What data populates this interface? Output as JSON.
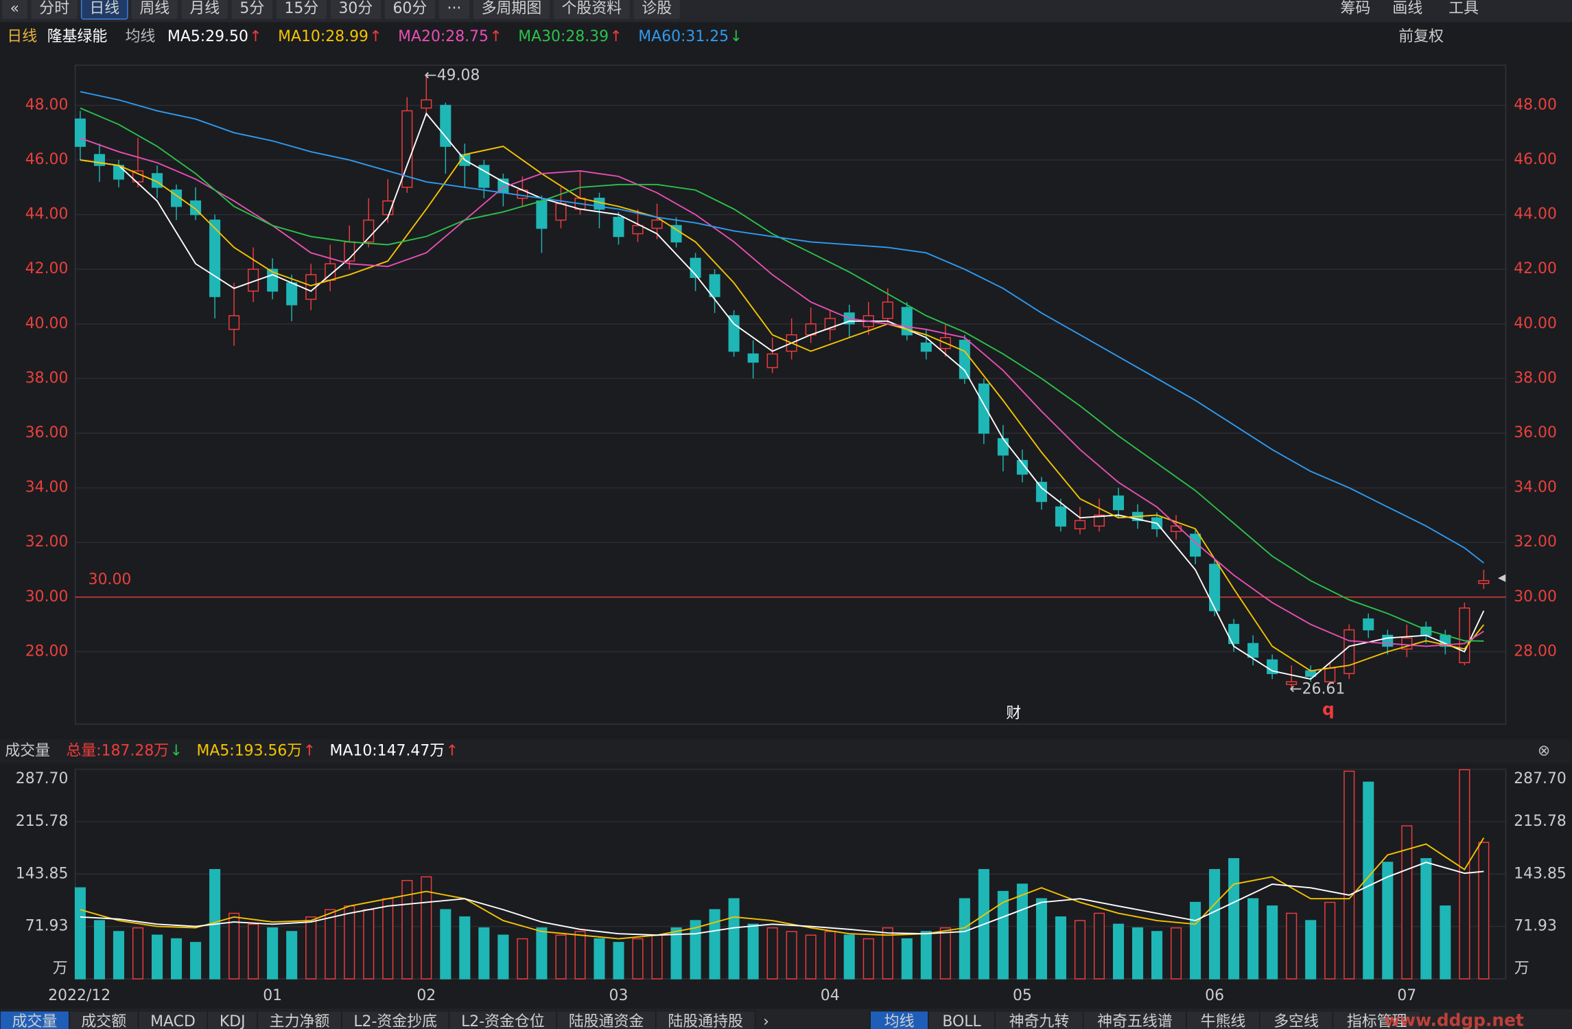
{
  "toolbar": {
    "left": [
      "«",
      "分时",
      "日线",
      "周线",
      "月线",
      "5分",
      "15分",
      "30分",
      "60分",
      "···",
      "多周期图",
      "个股资料",
      "诊股"
    ],
    "selected_index": 2,
    "right": [
      "筹码",
      "画线",
      "工具"
    ]
  },
  "chart_data": [
    {
      "type": "candlestick",
      "period": "日线",
      "name": "隆基绿能",
      "legend_title": "均线",
      "categories": [
        "2022/12",
        null,
        null,
        null,
        null,
        null,
        null,
        null,
        null,
        null,
        "01",
        null,
        null,
        null,
        null,
        null,
        null,
        null,
        "02",
        null,
        null,
        null,
        null,
        null,
        null,
        null,
        null,
        null,
        "03",
        null,
        null,
        null,
        null,
        null,
        null,
        null,
        null,
        null,
        null,
        "04",
        null,
        null,
        null,
        null,
        null,
        null,
        null,
        null,
        null,
        "05",
        null,
        null,
        null,
        null,
        null,
        null,
        null,
        null,
        null,
        "06",
        null,
        null,
        null,
        null,
        null,
        null,
        null,
        null,
        null,
        "07",
        null,
        null,
        null,
        null
      ],
      "open": [
        47.5,
        46.2,
        45.8,
        45.2,
        45.5,
        44.9,
        44.5,
        43.8,
        39.8,
        41.2,
        42.0,
        41.5,
        40.9,
        41.6,
        42.3,
        43.0,
        44.0,
        45.0,
        47.9,
        48.0,
        46.2,
        45.8,
        45.3,
        44.6,
        44.5,
        43.8,
        44.2,
        44.6,
        43.9,
        43.3,
        43.5,
        43.6,
        42.4,
        41.8,
        40.3,
        38.9,
        38.4,
        39.0,
        39.6,
        39.8,
        40.4,
        39.9,
        40.2,
        40.6,
        39.3,
        39.1,
        39.4,
        37.8,
        35.8,
        35.0,
        34.2,
        33.3,
        32.5,
        32.6,
        33.7,
        33.1,
        32.9,
        32.4,
        32.3,
        31.2,
        29.0,
        28.3,
        27.7,
        26.8,
        27.3,
        26.9,
        27.2,
        29.2,
        28.6,
        28.1,
        28.9,
        28.6,
        27.6,
        30.5
      ],
      "high": [
        47.8,
        46.6,
        46.0,
        46.8,
        45.8,
        45.1,
        45.0,
        44.0,
        41.5,
        42.8,
        42.4,
        41.8,
        42.2,
        42.9,
        43.6,
        44.6,
        45.3,
        48.3,
        49.08,
        48.1,
        46.6,
        46.0,
        45.5,
        45.4,
        44.7,
        45.0,
        45.6,
        44.8,
        44.1,
        44.2,
        44.4,
        43.9,
        42.6,
        42.0,
        40.5,
        39.4,
        39.5,
        40.2,
        40.6,
        40.5,
        40.7,
        40.8,
        41.3,
        40.8,
        39.8,
        40.0,
        39.6,
        38.0,
        36.3,
        35.4,
        34.4,
        33.6,
        33.3,
        33.6,
        34.0,
        33.4,
        33.1,
        33.0,
        32.5,
        31.4,
        29.2,
        28.6,
        27.9,
        27.5,
        27.5,
        27.6,
        29.0,
        29.4,
        28.8,
        29.0,
        29.1,
        28.8,
        29.8,
        31.0
      ],
      "low": [
        46.0,
        45.2,
        45.0,
        45.0,
        44.6,
        43.8,
        43.8,
        40.2,
        39.2,
        40.8,
        40.9,
        40.1,
        40.5,
        41.2,
        42.0,
        42.8,
        43.7,
        44.8,
        47.6,
        45.5,
        45.0,
        44.6,
        44.3,
        44.3,
        42.6,
        43.5,
        44.0,
        43.5,
        42.9,
        43.0,
        43.1,
        42.8,
        41.2,
        40.4,
        38.8,
        38.0,
        38.2,
        38.7,
        39.3,
        39.4,
        39.5,
        39.6,
        40.0,
        39.4,
        38.7,
        38.8,
        37.8,
        35.6,
        34.6,
        34.2,
        33.2,
        32.4,
        32.3,
        32.4,
        32.9,
        32.5,
        32.2,
        32.1,
        31.2,
        29.3,
        28.0,
        27.5,
        27.0,
        26.61,
        26.9,
        26.8,
        27.0,
        28.5,
        27.9,
        27.8,
        28.3,
        27.9,
        27.5,
        30.3
      ],
      "close": [
        46.5,
        45.8,
        45.3,
        45.6,
        45.0,
        44.3,
        44.0,
        41.0,
        40.3,
        42.0,
        41.2,
        40.7,
        41.8,
        42.2,
        43.0,
        43.8,
        44.5,
        47.8,
        48.2,
        46.5,
        45.8,
        45.0,
        44.8,
        44.9,
        43.5,
        44.4,
        44.6,
        44.2,
        43.2,
        43.6,
        43.8,
        43.0,
        41.7,
        41.0,
        39.0,
        38.6,
        38.9,
        39.6,
        40.0,
        40.2,
        40.0,
        40.3,
        40.8,
        39.6,
        39.0,
        39.5,
        38.0,
        36.0,
        35.2,
        34.5,
        33.5,
        32.6,
        32.8,
        33.0,
        33.2,
        32.8,
        32.5,
        32.6,
        31.5,
        29.5,
        28.3,
        27.8,
        27.2,
        26.9,
        27.1,
        27.4,
        28.8,
        28.8,
        28.2,
        28.5,
        28.6,
        28.2,
        29.6,
        30.6
      ],
      "up_color": "#f03c3c",
      "down_color": "#1fb6b6",
      "ylim": [
        25.35,
        49.47
      ],
      "yticks": [
        {
          "value": 28,
          "label": "28.00"
        },
        {
          "value": 30,
          "label": "30.00"
        },
        {
          "value": 32,
          "label": "32.00"
        },
        {
          "value": 34,
          "label": "34.00"
        },
        {
          "value": 36,
          "label": "36.00"
        },
        {
          "value": 38,
          "label": "38.00"
        },
        {
          "value": 40,
          "label": "40.00"
        },
        {
          "value": 42,
          "label": "42.00"
        },
        {
          "value": 44,
          "label": "44.00"
        },
        {
          "value": 46,
          "label": "46.00"
        },
        {
          "value": 48,
          "label": "48.00"
        }
      ],
      "grid": true,
      "lines": [
        {
          "name": "MA5",
          "label": "MA5:29.50",
          "trend": "↑",
          "color": "#ffffff",
          "x": [
            0,
            2,
            4,
            6,
            8,
            10,
            12,
            14,
            16,
            18,
            20,
            22,
            24,
            26,
            28,
            30,
            32,
            34,
            36,
            38,
            40,
            42,
            44,
            46,
            48,
            50,
            52,
            54,
            56,
            58,
            60,
            62,
            64,
            66,
            68,
            70,
            72,
            73
          ],
          "values": [
            46.0,
            45.8,
            44.5,
            42.2,
            41.3,
            41.8,
            41.2,
            42.4,
            43.9,
            47.7,
            46.0,
            45.2,
            44.6,
            44.2,
            44.0,
            43.3,
            41.8,
            40.0,
            39.0,
            39.6,
            40.1,
            40.1,
            39.5,
            38.3,
            35.8,
            34.0,
            32.9,
            33.0,
            32.7,
            31.0,
            28.2,
            27.3,
            27.0,
            28.2,
            28.5,
            28.6,
            28.0,
            29.5
          ]
        },
        {
          "name": "MA10",
          "label": "MA10:28.99",
          "trend": "↑",
          "color": "#f5c400",
          "x": [
            0,
            2,
            4,
            6,
            8,
            10,
            12,
            14,
            16,
            18,
            20,
            22,
            24,
            26,
            28,
            30,
            32,
            34,
            36,
            38,
            40,
            42,
            44,
            46,
            48,
            50,
            52,
            54,
            56,
            58,
            60,
            62,
            64,
            66,
            68,
            70,
            72,
            73
          ],
          "values": [
            46.0,
            45.8,
            45.2,
            44.2,
            42.8,
            41.9,
            41.4,
            41.8,
            42.3,
            44.2,
            46.2,
            46.5,
            45.5,
            44.6,
            44.3,
            43.9,
            43.0,
            41.5,
            39.6,
            39.0,
            39.5,
            40.0,
            39.6,
            39.0,
            37.2,
            35.3,
            33.6,
            32.9,
            33.0,
            32.5,
            30.3,
            28.2,
            27.3,
            27.5,
            28.0,
            28.4,
            28.1,
            28.99
          ]
        },
        {
          "name": "MA20",
          "label": "MA20:28.75",
          "trend": "↑",
          "color": "#e84fb4",
          "x": [
            0,
            2,
            4,
            6,
            8,
            10,
            12,
            14,
            16,
            18,
            20,
            22,
            24,
            26,
            28,
            30,
            32,
            34,
            36,
            38,
            40,
            42,
            44,
            46,
            48,
            50,
            52,
            54,
            56,
            58,
            60,
            62,
            64,
            66,
            68,
            70,
            72,
            73
          ],
          "values": [
            46.8,
            46.3,
            45.9,
            45.3,
            44.5,
            43.6,
            42.6,
            42.2,
            42.1,
            42.6,
            43.8,
            45.0,
            45.5,
            45.6,
            45.4,
            44.8,
            44.0,
            43.0,
            41.8,
            40.8,
            40.2,
            40.0,
            39.8,
            39.5,
            38.3,
            36.8,
            35.4,
            34.2,
            33.3,
            32.0,
            30.8,
            29.8,
            29.0,
            28.4,
            28.3,
            28.2,
            28.3,
            28.75
          ]
        },
        {
          "name": "MA30",
          "label": "MA30:28.39",
          "trend": "↑",
          "color": "#2bc24a",
          "x": [
            0,
            2,
            4,
            6,
            8,
            10,
            12,
            14,
            16,
            18,
            20,
            22,
            24,
            26,
            28,
            30,
            32,
            34,
            36,
            38,
            40,
            42,
            44,
            46,
            48,
            50,
            52,
            54,
            56,
            58,
            60,
            62,
            64,
            66,
            68,
            70,
            72,
            73
          ],
          "values": [
            47.9,
            47.3,
            46.5,
            45.5,
            44.3,
            43.6,
            43.2,
            43.0,
            42.9,
            43.2,
            43.8,
            44.1,
            44.5,
            45.0,
            45.1,
            45.1,
            44.9,
            44.2,
            43.3,
            42.6,
            41.9,
            41.1,
            40.3,
            39.7,
            38.9,
            38.0,
            37.0,
            35.9,
            34.9,
            33.9,
            32.7,
            31.5,
            30.6,
            29.9,
            29.4,
            28.8,
            28.4,
            28.39
          ]
        },
        {
          "name": "MA60",
          "label": "MA60:31.25",
          "trend": "↓",
          "color": "#2f9bf0",
          "x": [
            0,
            2,
            4,
            6,
            8,
            10,
            12,
            14,
            16,
            18,
            20,
            22,
            24,
            26,
            28,
            30,
            32,
            34,
            36,
            38,
            40,
            42,
            44,
            46,
            48,
            50,
            52,
            54,
            56,
            58,
            60,
            62,
            64,
            66,
            68,
            70,
            72,
            73
          ],
          "values": [
            48.5,
            48.2,
            47.8,
            47.5,
            47.0,
            46.7,
            46.3,
            46.0,
            45.6,
            45.2,
            45.0,
            44.8,
            44.6,
            44.4,
            44.2,
            43.9,
            43.7,
            43.4,
            43.2,
            43.0,
            42.9,
            42.8,
            42.6,
            42.0,
            41.3,
            40.4,
            39.6,
            38.8,
            38.0,
            37.2,
            36.3,
            35.4,
            34.6,
            34.0,
            33.3,
            32.6,
            31.8,
            31.25
          ]
        }
      ],
      "hline": {
        "value": 30,
        "label": "30.00",
        "color": "#e8413c"
      },
      "annotations": [
        {
          "label": "←49.08",
          "value": 49.08
        },
        {
          "label": "←26.61",
          "value": 26.61
        }
      ],
      "markers": [
        "财",
        "q"
      ],
      "right_controls": "前复权"
    },
    {
      "type": "bar",
      "title": "成交量",
      "unit": "万",
      "legend": [
        {
          "label": "总量:187.28万",
          "trend": "↓",
          "color": "#f03c3c"
        },
        {
          "label": "MA5:193.56万",
          "trend": "↑",
          "color": "#f5c400"
        },
        {
          "label": "MA10:147.47万",
          "trend": "↑",
          "color": "#ffffff"
        }
      ],
      "values": [
        125,
        80,
        65,
        70,
        60,
        55,
        50,
        150,
        90,
        75,
        70,
        65,
        85,
        95,
        100,
        95,
        110,
        135,
        140,
        95,
        85,
        70,
        60,
        55,
        70,
        60,
        65,
        55,
        50,
        55,
        60,
        70,
        80,
        95,
        110,
        75,
        70,
        65,
        60,
        65,
        60,
        55,
        70,
        55,
        65,
        70,
        110,
        150,
        120,
        130,
        110,
        85,
        80,
        90,
        75,
        70,
        65,
        70,
        105,
        150,
        165,
        110,
        100,
        90,
        80,
        105,
        285,
        270,
        160,
        210,
        165,
        100,
        287,
        187.28
      ],
      "ylim": [
        0,
        287.7
      ],
      "yticks": [
        71.93,
        143.85,
        215.78,
        {
          "value": 287.7,
          "label": "287.70"
        }
      ],
      "lines": [
        {
          "name": "MA5",
          "color": "#f5c400",
          "x": [
            0,
            2,
            4,
            6,
            8,
            10,
            12,
            14,
            16,
            18,
            20,
            22,
            24,
            26,
            28,
            30,
            32,
            34,
            36,
            38,
            40,
            42,
            44,
            46,
            48,
            50,
            52,
            54,
            56,
            58,
            60,
            62,
            64,
            66,
            68,
            70,
            72,
            73
          ],
          "values": [
            95,
            80,
            72,
            70,
            85,
            78,
            80,
            100,
            110,
            120,
            110,
            80,
            65,
            60,
            55,
            60,
            70,
            85,
            80,
            70,
            62,
            60,
            62,
            70,
            105,
            125,
            105,
            90,
            80,
            75,
            130,
            140,
            110,
            110,
            170,
            185,
            150,
            193.56
          ]
        },
        {
          "name": "MA10",
          "color": "#ffffff",
          "x": [
            0,
            2,
            4,
            6,
            8,
            10,
            12,
            14,
            16,
            18,
            20,
            22,
            24,
            26,
            28,
            30,
            32,
            34,
            36,
            38,
            40,
            42,
            44,
            46,
            48,
            50,
            52,
            54,
            56,
            58,
            60,
            62,
            64,
            66,
            68,
            70,
            72,
            73
          ],
          "values": [
            85,
            82,
            75,
            72,
            78,
            75,
            78,
            90,
            100,
            105,
            110,
            95,
            78,
            68,
            62,
            60,
            62,
            70,
            75,
            72,
            68,
            63,
            62,
            65,
            85,
            105,
            110,
            100,
            90,
            80,
            105,
            130,
            125,
            115,
            140,
            160,
            145,
            147.47
          ]
        }
      ]
    }
  ],
  "bottom_tabs": {
    "left": [
      "成交量",
      "成交额",
      "MACD",
      "KDJ",
      "主力净额",
      "L2-资金抄底",
      "L2-资金仓位",
      "陆股通资金",
      "陆股通持股"
    ],
    "right": [
      "均线",
      "BOLL",
      "神奇九转",
      "神奇五线谱",
      "牛熊线",
      "多空线",
      "指标管理"
    ],
    "selected_index": 0
  },
  "watermark": "www.ddgp.net"
}
